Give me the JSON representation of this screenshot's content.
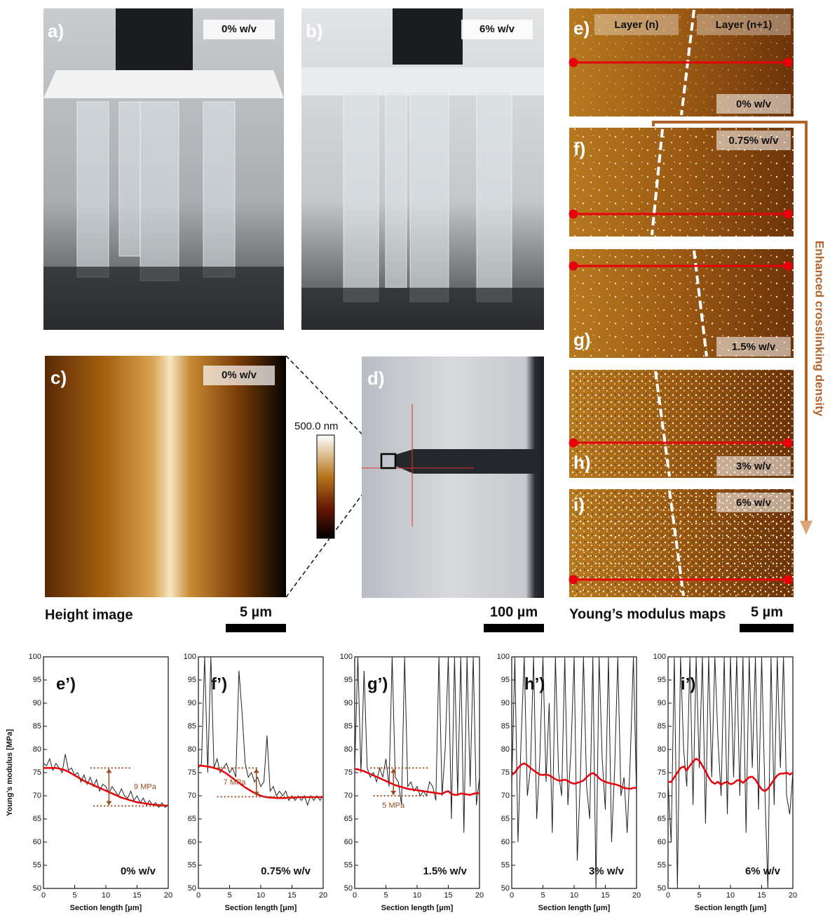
{
  "panels": {
    "a": {
      "label": "a)",
      "tag": "0% w/v"
    },
    "b": {
      "label": "b)",
      "tag": "6% w/v"
    },
    "c": {
      "label": "c)",
      "tag": "0% w/v",
      "colorbar": "500.0 nm",
      "caption": "Height image",
      "scale": "5 µm"
    },
    "d": {
      "label": "d)",
      "scale": "100 µm"
    },
    "e": {
      "label": "e)",
      "tag": "0% w/v",
      "left": "Layer (n)",
      "right": "Layer (n+1)"
    },
    "f": {
      "label": "f)",
      "tag": "0.75% w/v"
    },
    "g": {
      "label": "g)",
      "tag": "1.5% w/v"
    },
    "h": {
      "label": "h)",
      "tag": "3% w/v"
    },
    "i": {
      "label": "i)",
      "tag": "6% w/v"
    },
    "arrow": "Enhanced crosslinking density",
    "maps_caption": "Young’s modulus maps",
    "maps_scale": "5 µm"
  },
  "chart_data": [
    {
      "type": "line",
      "title": "e’)",
      "annotation": "0% w/v",
      "x_label": "Section length [μm]",
      "y_label": "Young’s modulus [MPa]",
      "xlim": [
        0,
        20
      ],
      "ylim": [
        50,
        100
      ],
      "xticks": [
        0,
        5,
        10,
        15,
        20
      ],
      "yticks": [
        50,
        55,
        60,
        65,
        70,
        75,
        80,
        85,
        90,
        95,
        100
      ],
      "x": [
        0,
        0.5,
        1,
        1.5,
        2,
        2.5,
        3,
        3.5,
        4,
        4.5,
        5,
        5.5,
        6,
        6.5,
        7,
        7.5,
        8,
        8.5,
        9,
        9.5,
        10,
        10.5,
        11,
        11.5,
        12,
        12.5,
        13,
        13.5,
        14,
        14.5,
        15,
        15.5,
        16,
        16.5,
        17,
        17.5,
        18,
        18.5,
        19,
        19.5,
        20
      ],
      "series": [
        {
          "color": "#222222",
          "values": [
            77,
            76.5,
            78,
            75.5,
            77,
            76,
            75,
            79,
            75.5,
            76,
            74.5,
            75,
            73,
            74.5,
            72.5,
            74,
            72,
            73.5,
            71,
            72.5,
            72,
            70.5,
            72,
            71,
            70,
            71.5,
            70,
            69.5,
            71,
            69,
            70,
            68.5,
            69.5,
            68,
            69,
            68,
            68.5,
            67.5,
            68.5,
            67.5,
            68
          ]
        },
        {
          "color": "#e8000b",
          "values": [
            76,
            76,
            76,
            76,
            76,
            75.9,
            75.7,
            75.5,
            75.2,
            74.8,
            74.4,
            74,
            73.6,
            73.2,
            72.9,
            72.6,
            72.3,
            72,
            71.7,
            71.4,
            71.1,
            70.8,
            70.5,
            70.2,
            69.9,
            69.6,
            69.4,
            69.2,
            69,
            68.8,
            68.6,
            68.5,
            68.4,
            68.3,
            68.2,
            68.1,
            68,
            68,
            67.9,
            67.9,
            67.9
          ]
        }
      ],
      "bracket": {
        "label": "9 MPa",
        "upper": 76,
        "lower": 67.8
      }
    },
    {
      "type": "line",
      "title": "f’)",
      "annotation": "0.75% w/v",
      "x_label": "Section length [μm]",
      "xlim": [
        0,
        20
      ],
      "ylim": [
        50,
        100
      ],
      "xticks": [
        0,
        5,
        10,
        15,
        20
      ],
      "yticks": [
        50,
        55,
        60,
        65,
        70,
        75,
        80,
        85,
        90,
        95,
        100
      ],
      "x": [
        0,
        0.5,
        1,
        1.5,
        2,
        2.5,
        3,
        3.5,
        4,
        4.5,
        5,
        5.5,
        6,
        6.5,
        7,
        7.5,
        8,
        8.5,
        9,
        9.5,
        10,
        10.5,
        11,
        11.5,
        12,
        12.5,
        13,
        13.5,
        14,
        14.5,
        15,
        15.5,
        16,
        16.5,
        17,
        17.5,
        18,
        18.5,
        19,
        19.5,
        20
      ],
      "series": [
        {
          "color": "#222222",
          "values": [
            76,
            77,
            100,
            75,
            100,
            76,
            78,
            75,
            76,
            77,
            75,
            76,
            74,
            97,
            88,
            77,
            74,
            75,
            73,
            74,
            72,
            73,
            83,
            71,
            72,
            70,
            71,
            70,
            71,
            69,
            70,
            69,
            70,
            69,
            70,
            68,
            70,
            69,
            70,
            69,
            70
          ]
        },
        {
          "color": "#e8000b",
          "values": [
            76.5,
            76.5,
            76.4,
            76.3,
            76.2,
            76,
            75.8,
            75.6,
            75.2,
            74.8,
            74.3,
            73.8,
            73.3,
            72.8,
            72.3,
            71.8,
            71.4,
            71,
            70.6,
            70.3,
            70,
            69.8,
            69.7,
            69.6,
            69.6,
            69.5,
            69.5,
            69.5,
            69.5,
            69.6,
            69.6,
            69.6,
            69.7,
            69.7,
            69.7,
            69.7,
            69.7,
            69.7,
            69.7,
            69.7,
            69.8
          ]
        }
      ],
      "bracket": {
        "label": "7 MPa",
        "upper": 76,
        "lower": 69.8
      }
    },
    {
      "type": "line",
      "title": "g’)",
      "annotation": "1.5% w/v",
      "x_label": "Section length [μm]",
      "xlim": [
        0,
        20
      ],
      "ylim": [
        50,
        100
      ],
      "xticks": [
        0,
        5,
        10,
        15,
        20
      ],
      "yticks": [
        50,
        55,
        60,
        65,
        70,
        75,
        80,
        85,
        90,
        95,
        100
      ],
      "x": [
        0,
        0.5,
        1,
        1.5,
        2,
        2.5,
        3,
        3.5,
        4,
        4.5,
        5,
        5.5,
        6,
        6.5,
        7,
        7.5,
        8,
        8.5,
        9,
        9.5,
        10,
        10.5,
        11,
        11.5,
        12,
        12.5,
        13,
        13.5,
        14,
        14.5,
        15,
        15.5,
        16,
        16.5,
        17,
        17.5,
        18,
        18.5,
        19,
        19.5,
        20
      ],
      "series": [
        {
          "color": "#222222",
          "values": [
            76,
            100,
            75,
            97,
            76,
            74,
            75,
            73,
            76,
            74,
            78,
            72,
            100,
            74,
            73,
            68,
            100,
            72,
            73,
            71,
            72,
            70,
            71,
            70,
            73,
            72,
            69,
            100,
            70,
            80,
            100,
            65,
            100,
            70,
            100,
            62,
            100,
            72,
            100,
            68,
            74
          ]
        },
        {
          "color": "#e8000b",
          "values": [
            75.8,
            75.7,
            75.5,
            75.3,
            75,
            74.7,
            74.4,
            74.1,
            73.8,
            73.5,
            73.2,
            72.9,
            72.6,
            72.3,
            72.1,
            71.9,
            71.7,
            71.5,
            71.4,
            71.3,
            71.2,
            71.1,
            71,
            70.9,
            70.8,
            70.7,
            70.6,
            70.5,
            70.4,
            70.8,
            71,
            70.4,
            70.2,
            70.2,
            70.5,
            70.4,
            70.3,
            70.2,
            70.4,
            70.6,
            70.5
          ]
        }
      ],
      "bracket": {
        "label": "5 MPa",
        "upper": 76,
        "lower": 70
      }
    },
    {
      "type": "line",
      "title": "h’)",
      "annotation": "3% w/v",
      "x_label": "Section length [μm]",
      "xlim": [
        0,
        20
      ],
      "ylim": [
        50,
        100
      ],
      "xticks": [
        0,
        5,
        10,
        15,
        20
      ],
      "yticks": [
        50,
        55,
        60,
        65,
        70,
        75,
        80,
        85,
        90,
        95,
        100
      ],
      "x": [
        0,
        0.5,
        1,
        1.5,
        2,
        2.5,
        3,
        3.5,
        4,
        4.5,
        5,
        5.5,
        6,
        6.5,
        7,
        7.5,
        8,
        8.5,
        9,
        9.5,
        10,
        10.5,
        11,
        11.5,
        12,
        12.5,
        13,
        13.5,
        14,
        14.5,
        15,
        15.5,
        16,
        16.5,
        17,
        17.5,
        18,
        18.5,
        19,
        19.5,
        20
      ],
      "series": [
        {
          "color": "#222222",
          "values": [
            72,
            100,
            60,
            82,
            100,
            70,
            76,
            100,
            65,
            78,
            100,
            73,
            90,
            62,
            100,
            75,
            70,
            100,
            68,
            80,
            100,
            56,
            74,
            100,
            72,
            65,
            100,
            50,
            100,
            78,
            67,
            100,
            60,
            76,
            100,
            70,
            74,
            62,
            78,
            100,
            70
          ]
        },
        {
          "color": "#e8000b",
          "values": [
            74.5,
            75,
            76,
            76.7,
            77,
            76.6,
            76,
            75.5,
            75,
            74.6,
            74.5,
            74.6,
            74.4,
            74,
            73.6,
            73.3,
            73.3,
            73.5,
            73.2,
            72.8,
            72.6,
            72.8,
            73,
            73.3,
            74,
            74.6,
            74.9,
            74.5,
            73.8,
            73.3,
            73,
            72.8,
            72.6,
            72.5,
            72.3,
            72,
            71.7,
            71.6,
            71.5,
            71.7,
            71.7
          ]
        }
      ]
    },
    {
      "type": "line",
      "title": "i’)",
      "annotation": "6% w/v",
      "x_label": "Section length [μm]",
      "xlim": [
        0,
        20
      ],
      "ylim": [
        50,
        100
      ],
      "xticks": [
        0,
        5,
        10,
        15,
        20
      ],
      "yticks": [
        50,
        55,
        60,
        65,
        70,
        75,
        80,
        85,
        90,
        95,
        100
      ],
      "x": [
        0,
        0.5,
        1,
        1.5,
        2,
        2.5,
        3,
        3.5,
        4,
        4.5,
        5,
        5.5,
        6,
        6.5,
        7,
        7.5,
        8,
        8.5,
        9,
        9.5,
        10,
        10.5,
        11,
        11.5,
        12,
        12.5,
        13,
        13.5,
        14,
        14.5,
        15,
        15.5,
        16,
        16.5,
        17,
        17.5,
        18,
        18.5,
        19,
        19.5,
        20
      ],
      "series": [
        {
          "color": "#222222",
          "values": [
            73,
            60,
            100,
            50,
            100,
            80,
            72,
            100,
            68,
            100,
            76,
            100,
            64,
            100,
            74,
            100,
            82,
            70,
            100,
            66,
            100,
            74,
            100,
            70,
            100,
            62,
            100,
            76,
            100,
            67,
            100,
            72,
            50,
            100,
            68,
            100,
            76,
            100,
            70,
            66,
            75
          ]
        },
        {
          "color": "#e8000b",
          "values": [
            73,
            73,
            74,
            75,
            76,
            76.3,
            75.5,
            76.5,
            77.4,
            78,
            77.6,
            76.5,
            75.3,
            74,
            73,
            72.6,
            73,
            72.4,
            72.8,
            73,
            72.5,
            72.7,
            73.3,
            73.4,
            72.8,
            73.4,
            74,
            74.1,
            73.5,
            72.4,
            71.4,
            71,
            71.5,
            72.5,
            73.5,
            74.4,
            74.8,
            74.8,
            75,
            74.6,
            75
          ]
        }
      ]
    }
  ]
}
